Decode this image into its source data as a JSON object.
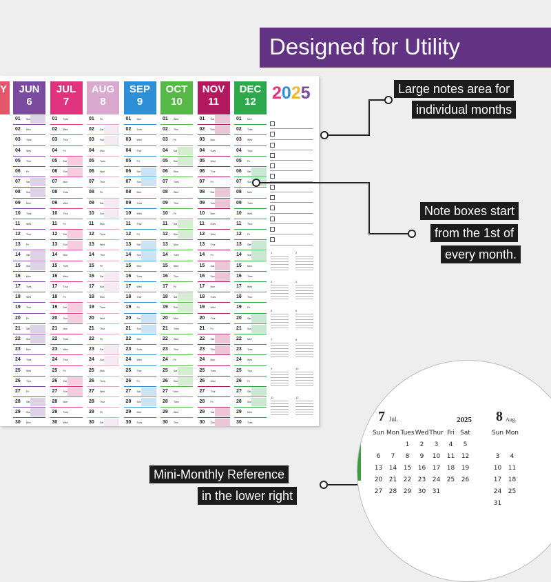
{
  "banner": {
    "title": "Designed for Utility"
  },
  "callouts": {
    "notes_area": [
      "Large notes area for",
      "individual months"
    ],
    "note_boxes": [
      "Note boxes start",
      "from the 1st of",
      "every month."
    ],
    "mini_monthly": [
      "Mini-Monthly Reference",
      "in the lower right"
    ]
  },
  "planner": {
    "year": "2025",
    "partial_label": "Y",
    "months": [
      {
        "abbr": "JUN",
        "num": "6",
        "color": "#7a4b9e",
        "start": 0
      },
      {
        "abbr": "JUL",
        "num": "7",
        "color": "#e0357e",
        "start": 2
      },
      {
        "abbr": "AUG",
        "num": "8",
        "color": "#d9a9cf",
        "start": 5
      },
      {
        "abbr": "SEP",
        "num": "9",
        "color": "#2d8fd6",
        "start": 1
      },
      {
        "abbr": "OCT",
        "num": "10",
        "color": "#56b947",
        "start": 3
      },
      {
        "abbr": "NOV",
        "num": "11",
        "color": "#b2195f",
        "start": 6
      },
      {
        "abbr": "DEC",
        "num": "12",
        "color": "#2ea84d",
        "start": 1
      }
    ],
    "weekdays": [
      "Sun",
      "Mon",
      "Tues",
      "Wed",
      "Thur",
      "Fri",
      "Sat"
    ],
    "year_colors": [
      "#e1347a",
      "#2d8fd6",
      "#f2b82d",
      "#7a4b9e"
    ]
  },
  "mini_calendar": {
    "month_num": "7",
    "month_name": "Jul.",
    "year": "2025",
    "weekdays": [
      "Sun",
      "Mon",
      "Tues",
      "Wed",
      "Thur",
      "Fri",
      "Sat"
    ],
    "first_weekday": 2,
    "days": 31,
    "next_month_num": "8",
    "next_month_name": "Aug."
  }
}
